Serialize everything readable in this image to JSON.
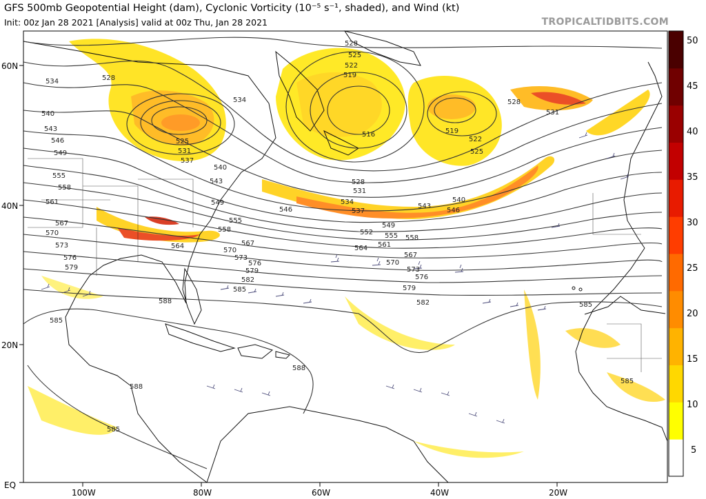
{
  "header": {
    "title": "GFS 500mb Geopotential Height (dam), Cyclonic Vorticity (10⁻⁵ s⁻¹, shaded), and Wind (kt)",
    "subtitle": "Init: 00z Jan 28 2021   [Analysis]   valid at 00z Thu, Jan 28 2021",
    "brand": "TROPICALTIDBITS.COM"
  },
  "axes": {
    "lat_labels": [
      "60N",
      "40N",
      "20N",
      "EQ"
    ],
    "lon_labels": [
      "100W",
      "80W",
      "60W",
      "40W",
      "20W"
    ]
  },
  "colorbar": {
    "ticks": [
      "50",
      "45",
      "40",
      "35",
      "30",
      "25",
      "20",
      "15",
      "10",
      "5"
    ],
    "colors": [
      "#ffffff",
      "#ffff00",
      "#ffd800",
      "#ffb300",
      "#ff8c00",
      "#ff6a00",
      "#ff3d00",
      "#e81b00",
      "#c20000",
      "#9a0000",
      "#700000",
      "#4a0000"
    ]
  },
  "contour_labels": {
    "c516": "516",
    "c519": "519",
    "c522": "522",
    "c525": "525",
    "c528": "528",
    "c531": "531",
    "c534": "534",
    "c537": "537",
    "c540": "540",
    "c543": "543",
    "c546": "546",
    "c549": "549",
    "c552": "552",
    "c555": "555",
    "c558": "558",
    "c561": "561",
    "c564": "564",
    "c567": "567",
    "c570": "570",
    "c573": "573",
    "c576": "576",
    "c579": "579",
    "c582": "582",
    "c585": "585",
    "c588": "588"
  },
  "colors": {
    "contour": "#333333",
    "land_outline": "#111111",
    "barb": "#4b4b7a"
  }
}
